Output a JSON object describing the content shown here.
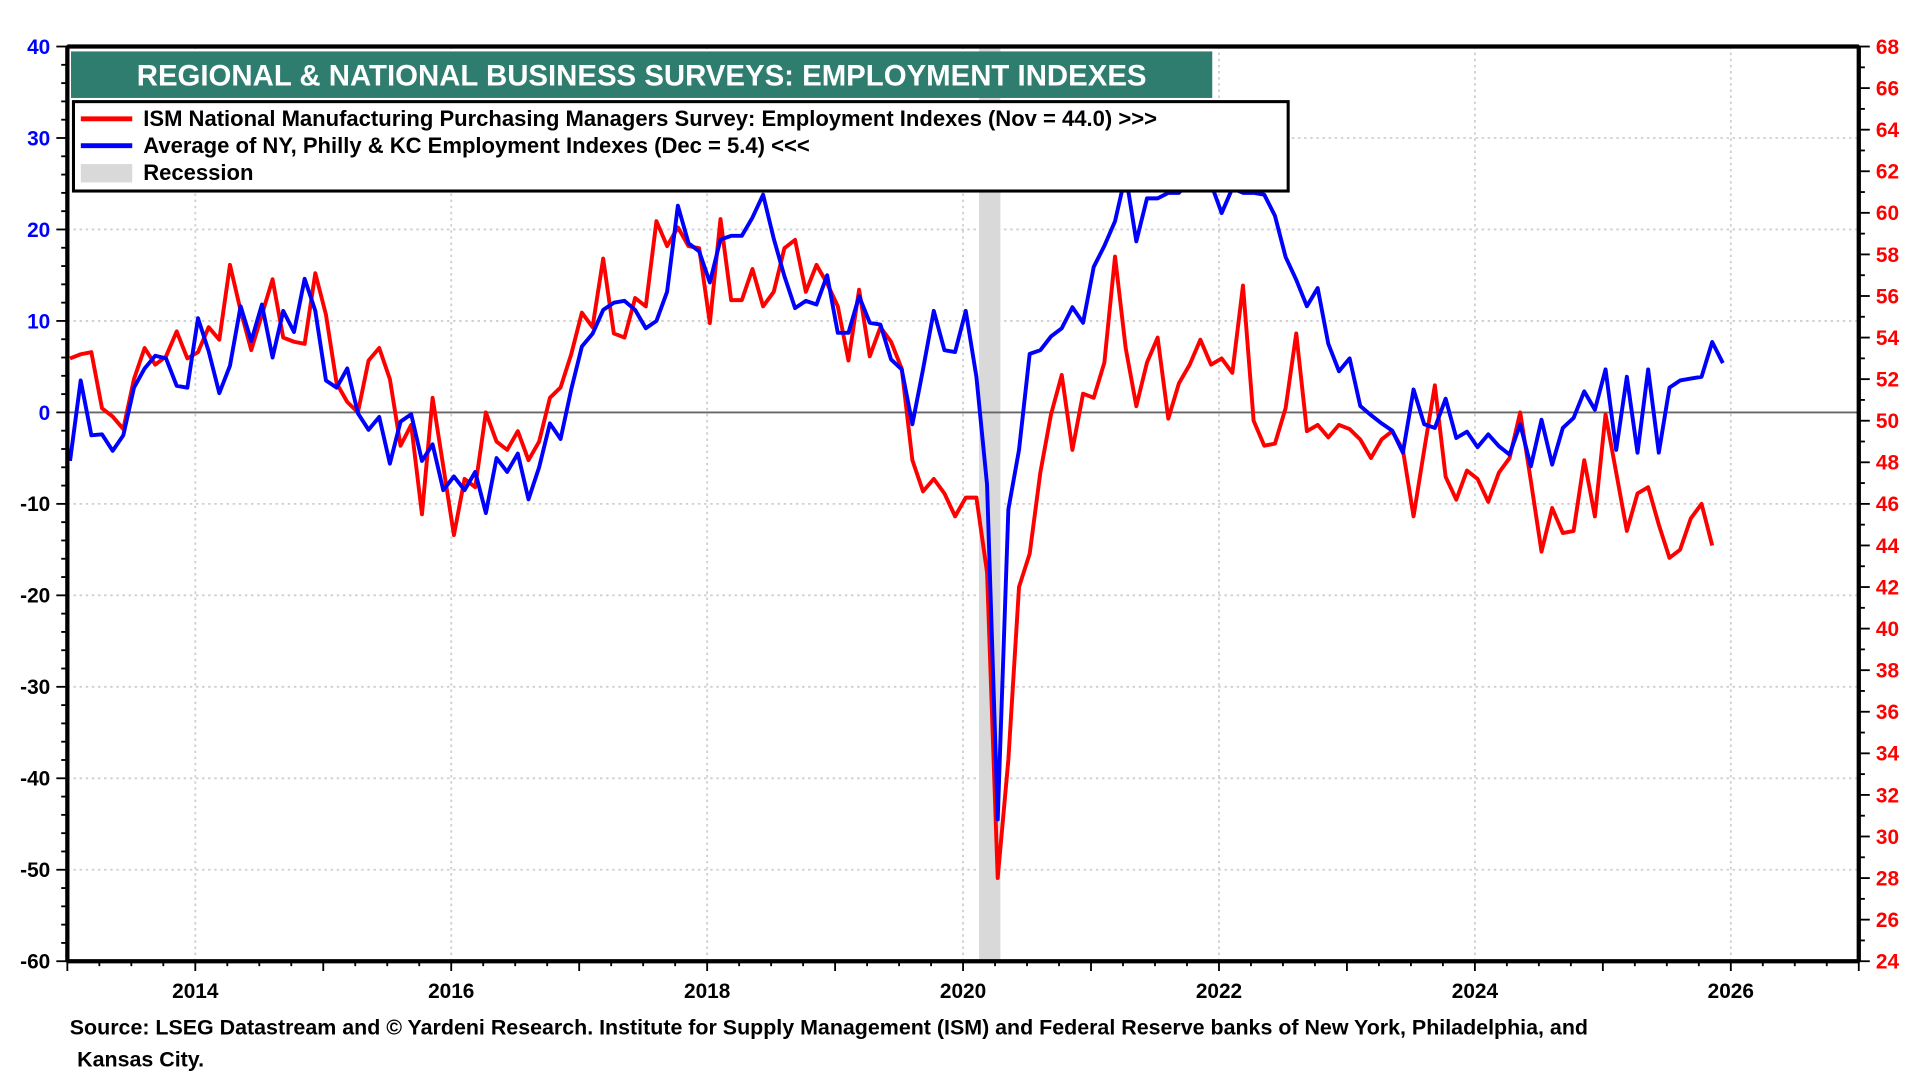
{
  "chart_data": {
    "type": "line",
    "title": "REGIONAL & NATIONAL BUSINESS SURVEYS: EMPLOYMENT INDEXES",
    "source": "Source: LSEG Datastream and © Yardeni Research. Institute for Supply Management (ISM) and Federal Reserve banks of New York, Philadelphia, and",
    "source_line2": "Kansas City.",
    "x_start": "2013-01",
    "frequency": "monthly",
    "xlim": [
      2013,
      2027
    ],
    "x_ticks": [
      "2014",
      "2016",
      "2018",
      "2020",
      "2022",
      "2024",
      "2026"
    ],
    "left_axis": {
      "ylim": [
        -60,
        40
      ],
      "ticks": [
        "40",
        "30",
        "20",
        "10",
        "0",
        "-10",
        "-20",
        "-30",
        "-40",
        "-50",
        "-60"
      ],
      "color": "#0000ff",
      "positive_color": "#0000ff",
      "negative_color": "#000000"
    },
    "right_axis": {
      "ylim": [
        24,
        68
      ],
      "ticks": [
        "68",
        "66",
        "64",
        "62",
        "60",
        "58",
        "56",
        "54",
        "52",
        "50",
        "48",
        "46",
        "44",
        "42",
        "40",
        "38",
        "36",
        "34",
        "32",
        "30",
        "28",
        "26",
        "24"
      ],
      "color": "#ff0000"
    },
    "grid": true,
    "legend_placement": "top-left",
    "legend": [
      {
        "label": "ISM National Manufacturing Purchasing Managers Survey: Employment Indexes (Nov = 44.0) >>>",
        "color": "#ff0000",
        "kind": "line"
      },
      {
        "label": "Average of NY, Philly & KC Employment Indexes (Dec = 5.4) <<<",
        "color": "#0000ff",
        "kind": "line"
      },
      {
        "label": "Recession",
        "color": "#d9d9d9",
        "kind": "band"
      }
    ],
    "recession": {
      "start": "2020-02",
      "end": "2020-04"
    },
    "series": [
      {
        "name": "ISM National Manufacturing Employment Index",
        "axis": "right",
        "color": "#ff0000",
        "start": "2013-01",
        "values": [
          53.0,
          53.2,
          53.3,
          50.6,
          50.2,
          49.6,
          52.0,
          53.5,
          52.7,
          53.1,
          54.3,
          53.0,
          53.3,
          54.5,
          53.9,
          57.5,
          55.3,
          53.4,
          55.1,
          56.8,
          54.0,
          53.8,
          53.7,
          57.1,
          55.1,
          51.8,
          50.9,
          50.4,
          52.9,
          53.5,
          52.0,
          48.8,
          49.8,
          45.5,
          51.1,
          47.8,
          44.5,
          47.2,
          46.8,
          50.4,
          49.0,
          48.6,
          49.5,
          48.1,
          49.0,
          51.1,
          51.6,
          53.2,
          55.2,
          54.5,
          57.8,
          54.2,
          54.0,
          55.9,
          55.5,
          59.6,
          58.4,
          59.3,
          58.4,
          58.3,
          54.7,
          59.7,
          55.8,
          55.8,
          57.3,
          55.5,
          56.2,
          58.3,
          58.7,
          56.2,
          57.5,
          56.6,
          55.5,
          52.9,
          56.3,
          53.1,
          54.5,
          53.8,
          52.5,
          48.1,
          46.6,
          47.2,
          46.5,
          45.4,
          46.3,
          46.3,
          42.7,
          28.0,
          33.7,
          42.0,
          43.6,
          47.5,
          50.3,
          52.2,
          48.6,
          51.3,
          51.1,
          52.8,
          57.9,
          53.5,
          50.7,
          52.8,
          54.0,
          50.1,
          51.8,
          52.7,
          53.9,
          52.7,
          53.0,
          52.3,
          56.5,
          50.0,
          48.8,
          48.9,
          50.6,
          54.2,
          49.5,
          49.8,
          49.2,
          49.8,
          49.6,
          49.1,
          48.2,
          49.1,
          49.5,
          48.6,
          45.4,
          48.6,
          51.7,
          47.3,
          46.2,
          47.6,
          47.2,
          46.1,
          47.5,
          48.2,
          50.4,
          47.1,
          43.7,
          45.8,
          44.6,
          44.7,
          48.1,
          45.4,
          50.3,
          47.5,
          44.7,
          46.5,
          46.8,
          45.0,
          43.4,
          43.8,
          45.3,
          46.0,
          44.0
        ]
      },
      {
        "name": "Average of NY, Philly & KC Employment Indexes",
        "axis": "left",
        "color": "#0000ff",
        "start": "2013-01",
        "values": [
          -5.3,
          3.5,
          -2.5,
          -2.4,
          -4.2,
          -2.5,
          2.7,
          4.8,
          6.2,
          5.9,
          2.9,
          2.7,
          10.3,
          6.7,
          2.1,
          5.1,
          11.6,
          7.8,
          11.8,
          6.0,
          11.1,
          8.8,
          14.6,
          11.1,
          3.5,
          2.7,
          4.8,
          -0.1,
          -1.9,
          -0.5,
          -5.6,
          -1.0,
          -0.2,
          -5.3,
          -3.5,
          -8.5,
          -7.0,
          -8.5,
          -6.5,
          -11.0,
          -5.0,
          -6.5,
          -4.5,
          -9.5,
          -6.0,
          -1.2,
          -2.9,
          2.5,
          7.2,
          8.6,
          11.2,
          12.0,
          12.2,
          11.2,
          9.2,
          10.0,
          13.2,
          22.6,
          18.5,
          17.6,
          14.2,
          18.9,
          19.3,
          19.3,
          21.3,
          23.8,
          19.0,
          14.9,
          11.4,
          12.2,
          11.8,
          15.0,
          8.7,
          8.7,
          12.7,
          9.8,
          9.6,
          5.8,
          4.7,
          -1.3,
          4.7,
          11.1,
          6.8,
          6.6,
          11.1,
          3.9,
          -7.9,
          -44.5,
          -10.6,
          -4.1,
          6.4,
          6.8,
          8.3,
          9.2,
          11.5,
          9.8,
          15.9,
          18.2,
          20.9,
          26.0,
          18.7,
          23.4,
          23.4,
          24.0,
          24.0,
          25.5,
          27.0,
          25.0,
          21.8,
          24.5,
          24.0,
          24.0,
          23.8,
          21.5,
          17.0,
          14.5,
          11.6,
          13.6,
          7.5,
          4.5,
          5.9,
          0.7,
          -0.3,
          -1.2,
          -2.0,
          -4.4,
          2.5,
          -1.3,
          -1.7,
          1.5,
          -2.8,
          -2.1,
          -3.8,
          -2.4,
          -3.7,
          -4.6,
          -1.3,
          -5.9,
          -0.8,
          -5.7,
          -1.7,
          -0.6,
          2.3,
          0.3,
          4.7,
          -4.1,
          3.9,
          -4.4,
          4.7,
          -4.4,
          2.7,
          3.5,
          3.7,
          3.9,
          7.7,
          5.4
        ]
      }
    ]
  }
}
